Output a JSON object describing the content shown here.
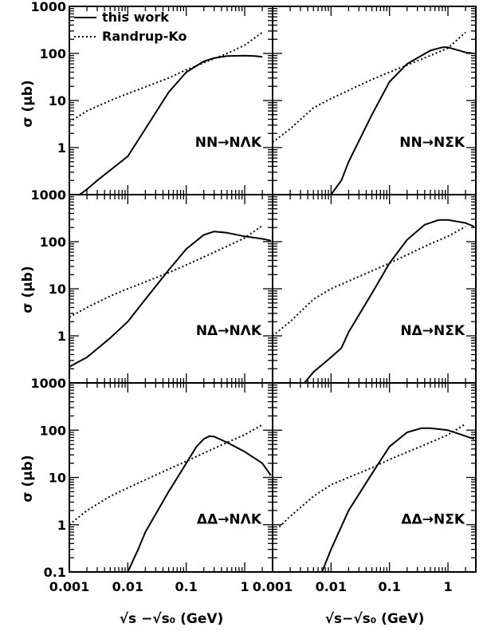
{
  "figure": {
    "ylabel": "σ (μb)",
    "xlabel_left": "√s −√s₀ (GeV)",
    "xlabel_right": "√s−√s₀ (GeV)",
    "legend": {
      "solid": "this work",
      "dotted": "Randrup-Ko"
    }
  },
  "chart_data": [
    {
      "type": "line",
      "panel": "row1-left",
      "label": "NN→NΛK",
      "xscale": "log",
      "yscale": "log",
      "xlim": [
        0.001,
        3
      ],
      "ylim": [
        0.1,
        1000
      ],
      "series": [
        {
          "name": "this work",
          "style": "solid",
          "points": [
            [
              0.0015,
              0.1
            ],
            [
              0.002,
              0.13
            ],
            [
              0.003,
              0.2
            ],
            [
              0.005,
              0.33
            ],
            [
              0.01,
              0.65
            ],
            [
              0.02,
              2.5
            ],
            [
              0.05,
              15
            ],
            [
              0.1,
              40
            ],
            [
              0.2,
              68
            ],
            [
              0.3,
              80
            ],
            [
              0.5,
              88
            ],
            [
              1.0,
              90
            ],
            [
              1.5,
              88
            ],
            [
              2.0,
              85
            ]
          ]
        },
        {
          "name": "Randrup-Ko",
          "style": "dotted",
          "points": [
            [
              0.001,
              3.5
            ],
            [
              0.002,
              6
            ],
            [
              0.005,
              10
            ],
            [
              0.01,
              14
            ],
            [
              0.05,
              30
            ],
            [
              0.1,
              45
            ],
            [
              0.5,
              100
            ],
            [
              1.0,
              150
            ],
            [
              2.0,
              280
            ]
          ]
        }
      ]
    },
    {
      "type": "line",
      "panel": "row1-right",
      "label": "NN→NΣK",
      "xscale": "log",
      "yscale": "log",
      "xlim": [
        0.001,
        3
      ],
      "ylim": [
        0.1,
        1000
      ],
      "series": [
        {
          "name": "this work",
          "style": "solid",
          "points": [
            [
              0.01,
              0.1
            ],
            [
              0.015,
              0.2
            ],
            [
              0.02,
              0.5
            ],
            [
              0.05,
              5
            ],
            [
              0.1,
              25
            ],
            [
              0.2,
              60
            ],
            [
              0.5,
              115
            ],
            [
              0.8,
              135
            ],
            [
              1.0,
              135
            ],
            [
              2.0,
              105
            ],
            [
              2.8,
              100
            ]
          ]
        },
        {
          "name": "Randrup-Ko",
          "style": "dotted",
          "points": [
            [
              0.001,
              1.3
            ],
            [
              0.002,
              2.5
            ],
            [
              0.005,
              7
            ],
            [
              0.01,
              11
            ],
            [
              0.05,
              28
            ],
            [
              0.1,
              40
            ],
            [
              0.5,
              90
            ],
            [
              1.0,
              130
            ],
            [
              2.0,
              280
            ]
          ]
        }
      ]
    },
    {
      "type": "line",
      "panel": "row2-left",
      "label": "NΔ→NΛK",
      "xscale": "log",
      "yscale": "log",
      "xlim": [
        0.001,
        3
      ],
      "ylim": [
        0.1,
        1000
      ],
      "series": [
        {
          "name": "this work",
          "style": "solid",
          "points": [
            [
              0.001,
              0.22
            ],
            [
              0.002,
              0.35
            ],
            [
              0.005,
              0.9
            ],
            [
              0.01,
              2
            ],
            [
              0.02,
              6
            ],
            [
              0.05,
              25
            ],
            [
              0.1,
              70
            ],
            [
              0.2,
              140
            ],
            [
              0.3,
              165
            ],
            [
              0.5,
              155
            ],
            [
              1.0,
              130
            ],
            [
              2.0,
              115
            ],
            [
              2.8,
              105
            ]
          ]
        },
        {
          "name": "Randrup-Ko",
          "style": "dotted",
          "points": [
            [
              0.001,
              2.5
            ],
            [
              0.002,
              4
            ],
            [
              0.005,
              7
            ],
            [
              0.01,
              10
            ],
            [
              0.05,
              22
            ],
            [
              0.1,
              32
            ],
            [
              0.5,
              80
            ],
            [
              1.0,
              120
            ],
            [
              2.0,
              220
            ]
          ]
        }
      ]
    },
    {
      "type": "line",
      "panel": "row2-right",
      "label": "NΔ→NΣK",
      "xscale": "log",
      "yscale": "log",
      "xlim": [
        0.001,
        3
      ],
      "ylim": [
        0.1,
        1000
      ],
      "series": [
        {
          "name": "this work",
          "style": "solid",
          "points": [
            [
              0.0035,
              0.1
            ],
            [
              0.005,
              0.17
            ],
            [
              0.01,
              0.35
            ],
            [
              0.015,
              0.55
            ],
            [
              0.02,
              1.2
            ],
            [
              0.05,
              8
            ],
            [
              0.1,
              35
            ],
            [
              0.2,
              110
            ],
            [
              0.4,
              230
            ],
            [
              0.7,
              290
            ],
            [
              1.0,
              290
            ],
            [
              2.0,
              250
            ],
            [
              2.8,
              210
            ]
          ]
        },
        {
          "name": "Randrup-Ko",
          "style": "dotted",
          "points": [
            [
              0.001,
              1
            ],
            [
              0.002,
              2
            ],
            [
              0.005,
              6
            ],
            [
              0.01,
              10
            ],
            [
              0.05,
              24
            ],
            [
              0.1,
              35
            ],
            [
              0.5,
              90
            ],
            [
              1.0,
              130
            ],
            [
              2.0,
              210
            ]
          ]
        }
      ]
    },
    {
      "type": "line",
      "panel": "row3-left",
      "label": "ΔΔ→NΛK",
      "xscale": "log",
      "yscale": "log",
      "xlim": [
        0.001,
        3
      ],
      "ylim": [
        0.1,
        1000
      ],
      "series": [
        {
          "name": "this work",
          "style": "solid",
          "points": [
            [
              0.01,
              0.1
            ],
            [
              0.015,
              0.3
            ],
            [
              0.02,
              0.7
            ],
            [
              0.05,
              5
            ],
            [
              0.1,
              20
            ],
            [
              0.15,
              45
            ],
            [
              0.2,
              65
            ],
            [
              0.25,
              75
            ],
            [
              0.3,
              73
            ],
            [
              0.5,
              55
            ],
            [
              1.0,
              35
            ],
            [
              2.0,
              20
            ],
            [
              2.8,
              11
            ]
          ]
        },
        {
          "name": "Randrup-Ko",
          "style": "dotted",
          "points": [
            [
              0.001,
              1
            ],
            [
              0.002,
              2
            ],
            [
              0.005,
              4
            ],
            [
              0.01,
              6
            ],
            [
              0.05,
              15
            ],
            [
              0.1,
              22
            ],
            [
              0.5,
              55
            ],
            [
              1.0,
              80
            ],
            [
              2.0,
              130
            ]
          ]
        }
      ]
    },
    {
      "type": "line",
      "panel": "row3-right",
      "label": "ΔΔ→NΣK",
      "xscale": "log",
      "yscale": "log",
      "xlim": [
        0.001,
        3
      ],
      "ylim": [
        0.1,
        1000
      ],
      "series": [
        {
          "name": "this work",
          "style": "solid",
          "points": [
            [
              0.007,
              0.1
            ],
            [
              0.01,
              0.3
            ],
            [
              0.02,
              2
            ],
            [
              0.05,
              12
            ],
            [
              0.1,
              45
            ],
            [
              0.2,
              90
            ],
            [
              0.35,
              110
            ],
            [
              0.5,
              110
            ],
            [
              1.0,
              100
            ],
            [
              2.0,
              75
            ],
            [
              2.8,
              65
            ]
          ]
        },
        {
          "name": "Randrup-Ko",
          "style": "dotted",
          "points": [
            [
              0.0013,
              0.9
            ],
            [
              0.002,
              1.5
            ],
            [
              0.005,
              4
            ],
            [
              0.01,
              7
            ],
            [
              0.05,
              16
            ],
            [
              0.1,
              24
            ],
            [
              0.5,
              55
            ],
            [
              1.0,
              80
            ],
            [
              2.0,
              135
            ]
          ]
        }
      ]
    }
  ]
}
